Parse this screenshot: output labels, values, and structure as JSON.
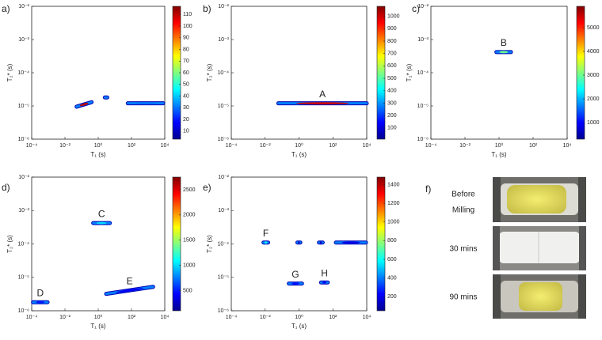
{
  "chart_data": [
    {
      "type": "contour",
      "panel_label": "a)",
      "xlabel": "T₁ (s)",
      "ylabel": "T₂* (s)",
      "log_x": true,
      "log_y": true,
      "xlim": [
        0.0001,
        10000
      ],
      "ylim": [
        1e-06,
        0.01
      ],
      "xticks": [
        {
          "value": 0.0001,
          "label": "10⁻⁴"
        },
        {
          "value": 0.01,
          "label": "10⁻²"
        },
        {
          "value": 1,
          "label": "10⁰"
        },
        {
          "value": 100,
          "label": "10²"
        },
        {
          "value": 10000,
          "label": "10⁴"
        }
      ],
      "yticks": [
        {
          "value": 1e-06,
          "label": "10⁻⁶"
        },
        {
          "value": 1e-05,
          "label": "10⁻⁵"
        },
        {
          "value": 0.0001,
          "label": "10⁻⁴"
        },
        {
          "value": 0.001,
          "label": "10⁻³"
        },
        {
          "value": 0.01,
          "label": "10⁻²"
        }
      ],
      "clim": [
        3,
        117
      ],
      "cticks": [
        10,
        20,
        30,
        40,
        50,
        60,
        70,
        80,
        90,
        100,
        110
      ],
      "blobs": [
        {
          "x": [
            0.05,
            0.4
          ],
          "y": [
            9.5e-06,
            1.3e-05
          ],
          "peak": 110
        },
        {
          "x": [
            2.5,
            3.5
          ],
          "y": [
            1.8e-05,
            1.8e-05
          ],
          "peak": 30
        },
        {
          "x": [
            60,
            8000
          ],
          "y": [
            1.2e-05,
            1.2e-05
          ],
          "peak": 30
        }
      ]
    },
    {
      "type": "contour",
      "panel_label": "b)",
      "xlabel": "T₁ (s)",
      "ylabel": "T₂* (s)",
      "log_x": true,
      "log_y": true,
      "xlim": [
        0.0001,
        10000
      ],
      "ylim": [
        1e-06,
        0.01
      ],
      "xticks": [
        {
          "value": 0.0001,
          "label": "10⁻⁴"
        },
        {
          "value": 0.01,
          "label": "10⁻²"
        },
        {
          "value": 1,
          "label": "10⁰"
        },
        {
          "value": 100,
          "label": "10²"
        },
        {
          "value": 10000,
          "label": "10⁴"
        }
      ],
      "yticks": [
        {
          "value": 1e-06,
          "label": "10⁻⁶"
        },
        {
          "value": 1e-05,
          "label": "10⁻⁵"
        },
        {
          "value": 0.0001,
          "label": "10⁻⁴"
        },
        {
          "value": 0.001,
          "label": "10⁻³"
        },
        {
          "value": 0.01,
          "label": "10⁻²"
        }
      ],
      "clim": [
        10,
        1080
      ],
      "cticks": [
        100,
        200,
        300,
        400,
        500,
        600,
        700,
        800,
        900,
        1000
      ],
      "blobs": [
        {
          "label": "A",
          "x": [
            0.06,
            10000
          ],
          "y": [
            1.2e-05,
            1.2e-05
          ],
          "peak": 1000
        }
      ]
    },
    {
      "type": "contour",
      "panel_label": "c)",
      "xlabel": "T₁ (s)",
      "ylabel": "T₂* (s)",
      "log_x": true,
      "log_y": true,
      "xlim": [
        0.0001,
        10000
      ],
      "ylim": [
        1e-06,
        0.01
      ],
      "xticks": [
        {
          "value": 0.0001,
          "label": "10⁻⁴"
        },
        {
          "value": 0.01,
          "label": "10⁻²"
        },
        {
          "value": 1,
          "label": "10⁰"
        },
        {
          "value": 100,
          "label": "10²"
        },
        {
          "value": 10000,
          "label": "10⁴"
        }
      ],
      "yticks": [
        {
          "value": 1e-06,
          "label": "10⁻⁶"
        },
        {
          "value": 1e-05,
          "label": "10⁻⁵"
        },
        {
          "value": 0.0001,
          "label": "10⁻⁴"
        },
        {
          "value": 0.001,
          "label": "10⁻³"
        },
        {
          "value": 0.01,
          "label": "10⁻²"
        }
      ],
      "clim": [
        300,
        5900
      ],
      "cticks": [
        1000,
        2000,
        3000,
        4000,
        5000
      ],
      "blobs": [
        {
          "label": "B",
          "x": [
            0.7,
            5
          ],
          "y": [
            0.00042,
            0.00042
          ],
          "peak": 3000
        }
      ]
    },
    {
      "type": "contour",
      "panel_label": "d)",
      "xlabel": "T₁ (s)",
      "ylabel": "T₂* (s)",
      "log_x": true,
      "log_y": true,
      "xlim": [
        0.0001,
        10000
      ],
      "ylim": [
        1e-06,
        0.01
      ],
      "xticks": [
        {
          "value": 0.0001,
          "label": "10⁻⁴"
        },
        {
          "value": 0.01,
          "label": "10⁻²"
        },
        {
          "value": 1,
          "label": "10⁰"
        },
        {
          "value": 100,
          "label": "10²"
        },
        {
          "value": 10000,
          "label": "10⁴"
        }
      ],
      "yticks": [
        {
          "value": 1e-06,
          "label": "10⁻⁶"
        },
        {
          "value": 1e-05,
          "label": "10⁻⁵"
        },
        {
          "value": 0.0001,
          "label": "10⁻⁴"
        },
        {
          "value": 0.001,
          "label": "10⁻³"
        },
        {
          "value": 0.01,
          "label": "10⁻²"
        }
      ],
      "clim": [
        100,
        2750
      ],
      "cticks": [
        500,
        1000,
        1500,
        2000,
        2500
      ],
      "blobs": [
        {
          "label": "C",
          "x": [
            0.5,
            5
          ],
          "y": [
            0.00042,
            0.00042
          ],
          "peak": 1000
        },
        {
          "label": "D",
          "x": [
            0.00012,
            0.0009
          ],
          "y": [
            1.8e-06,
            1.8e-06
          ],
          "peak": 500
        },
        {
          "label": "E",
          "x": [
            3,
            2000
          ],
          "y": [
            3.2e-06,
            5.2e-06
          ],
          "peak": 400
        }
      ]
    },
    {
      "type": "contour",
      "panel_label": "e)",
      "xlabel": "T₁ (s)",
      "ylabel": "T₂* (s)",
      "log_x": true,
      "log_y": true,
      "xlim": [
        0.0001,
        10000
      ],
      "ylim": [
        1e-06,
        0.01
      ],
      "xticks": [
        {
          "value": 0.0001,
          "label": "10⁻⁴"
        },
        {
          "value": 0.01,
          "label": "10⁻²"
        },
        {
          "value": 1,
          "label": "10⁰"
        },
        {
          "value": 100,
          "label": "10²"
        },
        {
          "value": 10000,
          "label": "10⁴"
        }
      ],
      "yticks": [
        {
          "value": 1e-06,
          "label": "10⁻⁶"
        },
        {
          "value": 1e-05,
          "label": "10⁻⁵"
        },
        {
          "value": 0.0001,
          "label": "10⁻⁴"
        },
        {
          "value": 0.001,
          "label": "10⁻³"
        },
        {
          "value": 0.01,
          "label": "10⁻²"
        }
      ],
      "clim": [
        50,
        1480
      ],
      "cticks": [
        200,
        400,
        600,
        800,
        1000,
        1200,
        1400
      ],
      "blobs": [
        {
          "label": "F",
          "x": [
            0.008,
            0.015
          ],
          "y": [
            0.00011,
            0.00011
          ],
          "peak": 600
        },
        {
          "x": [
            0.8,
            1.2
          ],
          "y": [
            0.00011,
            0.00011
          ],
          "peak": 150
        },
        {
          "x": [
            15,
            25
          ],
          "y": [
            0.00011,
            0.00011
          ],
          "peak": 150
        },
        {
          "x": [
            150,
            9000
          ],
          "y": [
            0.00011,
            0.00011
          ],
          "peak": 200
        },
        {
          "label": "G",
          "x": [
            0.25,
            1.5
          ],
          "y": [
            6.5e-06,
            6.5e-06
          ],
          "peak": 250
        },
        {
          "label": "H",
          "x": [
            20,
            50
          ],
          "y": [
            7e-06,
            7e-06
          ],
          "peak": 250
        }
      ]
    }
  ],
  "photo_panel": {
    "label": "f)",
    "captions": [
      [
        "Before",
        "Milling"
      ],
      [
        "30 mins"
      ],
      [
        "90 mins"
      ]
    ]
  }
}
